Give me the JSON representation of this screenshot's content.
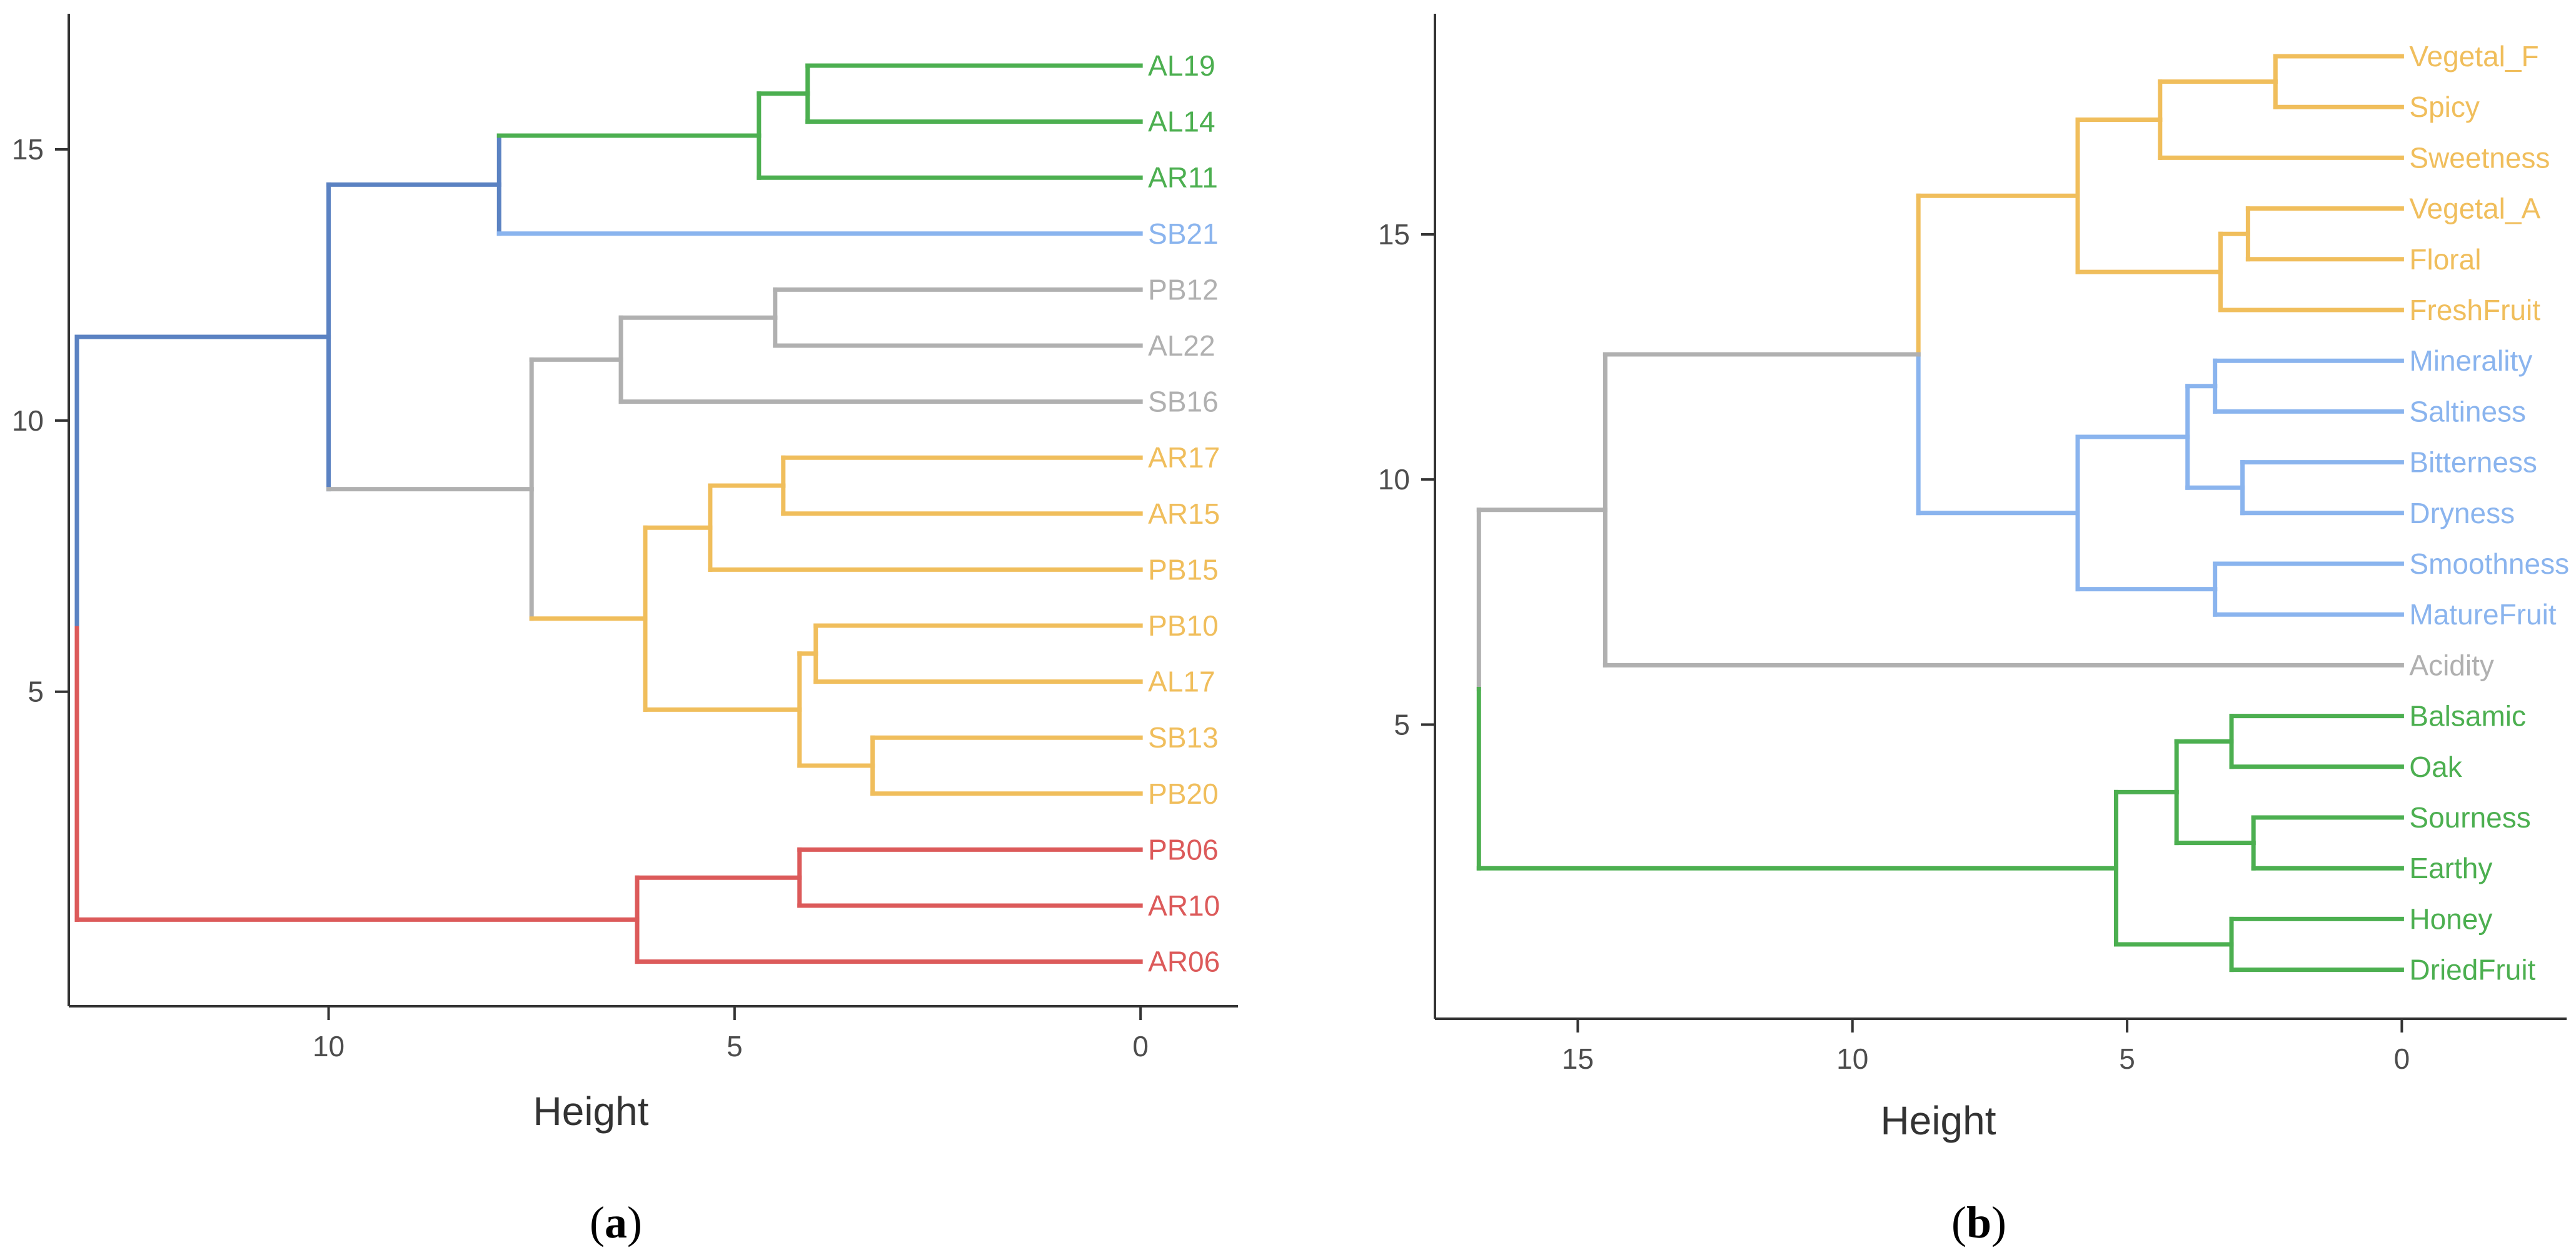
{
  "chart_data": [
    {
      "type": "dendrogram",
      "panel_label": "a",
      "xlabel": "Height",
      "ylabel": "",
      "height_axis_ticks": [
        10,
        5,
        0
      ],
      "vertical_axis_ticks": [
        5,
        10,
        15
      ],
      "height_range": [
        13.2,
        -1.2
      ],
      "vertical_range": [
        -0.8,
        17.5
      ],
      "leaves": [
        {
          "label": "AL19",
          "cluster": "green"
        },
        {
          "label": "AL14",
          "cluster": "green"
        },
        {
          "label": "AR11",
          "cluster": "green"
        },
        {
          "label": "SB21",
          "cluster": "lightblue"
        },
        {
          "label": "PB12",
          "cluster": "gray"
        },
        {
          "label": "AL22",
          "cluster": "gray"
        },
        {
          "label": "SB16",
          "cluster": "gray"
        },
        {
          "label": "AR17",
          "cluster": "orange"
        },
        {
          "label": "AR15",
          "cluster": "orange"
        },
        {
          "label": "PB15",
          "cluster": "orange"
        },
        {
          "label": "PB10",
          "cluster": "orange"
        },
        {
          "label": "AL17",
          "cluster": "orange"
        },
        {
          "label": "SB13",
          "cluster": "orange"
        },
        {
          "label": "PB20",
          "cluster": "orange"
        },
        {
          "label": "PB06",
          "cluster": "red"
        },
        {
          "label": "AR10",
          "cluster": "red"
        },
        {
          "label": "AR06",
          "cluster": "red"
        }
      ],
      "merges": [
        {
          "id": "a_m1",
          "left": "AL19",
          "right": "AL14",
          "height": 4.1,
          "cluster": "green"
        },
        {
          "id": "a_m2",
          "left": "a_m1",
          "right": "AR11",
          "height": 4.7,
          "cluster": "green"
        },
        {
          "id": "a_m3",
          "left": "a_m2",
          "right": "SB21",
          "height": 7.9,
          "cluster": "blue"
        },
        {
          "id": "a_m4",
          "left": "PB12",
          "right": "AL22",
          "height": 4.5,
          "cluster": "gray"
        },
        {
          "id": "a_m5",
          "left": "a_m4",
          "right": "SB16",
          "height": 6.4,
          "cluster": "gray"
        },
        {
          "id": "a_m6",
          "left": "AR17",
          "right": "AR15",
          "height": 4.4,
          "cluster": "orange"
        },
        {
          "id": "a_m7",
          "left": "a_m6",
          "right": "PB15",
          "height": 5.3,
          "cluster": "orange"
        },
        {
          "id": "a_m8",
          "left": "PB10",
          "right": "AL17",
          "height": 4.0,
          "cluster": "orange"
        },
        {
          "id": "a_m9",
          "left": "SB13",
          "right": "PB20",
          "height": 3.3,
          "cluster": "orange"
        },
        {
          "id": "a_m10",
          "left": "a_m8",
          "right": "a_m9",
          "height": 4.2,
          "cluster": "orange"
        },
        {
          "id": "a_m11",
          "left": "a_m7",
          "right": "a_m10",
          "height": 6.1,
          "cluster": "orange"
        },
        {
          "id": "a_m12",
          "left": "a_m5",
          "right": "a_m11",
          "height": 7.5,
          "cluster": "gray"
        },
        {
          "id": "a_m13",
          "left": "a_m3",
          "right": "a_m12",
          "height": 10.0,
          "cluster": "blue"
        },
        {
          "id": "a_m14",
          "left": "PB06",
          "right": "AR10",
          "height": 4.2,
          "cluster": "red"
        },
        {
          "id": "a_m15",
          "left": "a_m14",
          "right": "AR06",
          "height": 6.2,
          "cluster": "red"
        },
        {
          "id": "a_m16",
          "left": "a_m13",
          "right": "a_m15",
          "height": 13.1,
          "cluster": "split"
        }
      ]
    },
    {
      "type": "dendrogram",
      "panel_label": "b",
      "xlabel": "Height",
      "ylabel": "",
      "height_axis_ticks": [
        15,
        10,
        5,
        0
      ],
      "vertical_axis_ticks": [
        5,
        10,
        15
      ],
      "height_range": [
        17.6,
        -3.0
      ],
      "vertical_range": [
        -1.0,
        19.5
      ],
      "leaves": [
        {
          "label": "Vegetal_F",
          "cluster": "orange"
        },
        {
          "label": "Spicy",
          "cluster": "orange"
        },
        {
          "label": "Sweetness",
          "cluster": "orange"
        },
        {
          "label": "Vegetal_A",
          "cluster": "orange"
        },
        {
          "label": "Floral",
          "cluster": "orange"
        },
        {
          "label": "FreshFruit",
          "cluster": "orange"
        },
        {
          "label": "Minerality",
          "cluster": "lightblue"
        },
        {
          "label": "Saltiness",
          "cluster": "lightblue"
        },
        {
          "label": "Bitterness",
          "cluster": "lightblue"
        },
        {
          "label": "Dryness",
          "cluster": "lightblue"
        },
        {
          "label": "Smoothness",
          "cluster": "lightblue"
        },
        {
          "label": "MatureFruit",
          "cluster": "lightblue"
        },
        {
          "label": "Acidity",
          "cluster": "gray"
        },
        {
          "label": "Balsamic",
          "cluster": "green"
        },
        {
          "label": "Oak",
          "cluster": "green"
        },
        {
          "label": "Sourness",
          "cluster": "green"
        },
        {
          "label": "Earthy",
          "cluster": "green"
        },
        {
          "label": "Honey",
          "cluster": "green"
        },
        {
          "label": "DriedFruit",
          "cluster": "green"
        }
      ],
      "merges": [
        {
          "id": "b_m1",
          "left": "Vegetal_F",
          "right": "Spicy",
          "height": 2.3,
          "cluster": "orange"
        },
        {
          "id": "b_m2",
          "left": "b_m1",
          "right": "Sweetness",
          "height": 4.4,
          "cluster": "orange"
        },
        {
          "id": "b_m3",
          "left": "Vegetal_A",
          "right": "Floral",
          "height": 2.8,
          "cluster": "orange"
        },
        {
          "id": "b_m4",
          "left": "b_m3",
          "right": "FreshFruit",
          "height": 3.3,
          "cluster": "orange"
        },
        {
          "id": "b_m5",
          "left": "b_m2",
          "right": "b_m4",
          "height": 5.9,
          "cluster": "orange"
        },
        {
          "id": "b_m6",
          "left": "Minerality",
          "right": "Saltiness",
          "height": 3.4,
          "cluster": "lightblue"
        },
        {
          "id": "b_m7",
          "left": "Bitterness",
          "right": "Dryness",
          "height": 2.9,
          "cluster": "lightblue"
        },
        {
          "id": "b_m8",
          "left": "b_m6",
          "right": "b_m7",
          "height": 3.9,
          "cluster": "lightblue"
        },
        {
          "id": "b_m9",
          "left": "Smoothness",
          "right": "MatureFruit",
          "height": 3.4,
          "cluster": "lightblue"
        },
        {
          "id": "b_m10",
          "left": "b_m8",
          "right": "b_m9",
          "height": 5.9,
          "cluster": "lightblue"
        },
        {
          "id": "b_m11",
          "left": "b_m5",
          "right": "b_m10",
          "height": 8.8,
          "cluster": "split"
        },
        {
          "id": "b_m12",
          "left": "b_m11",
          "right": "Acidity",
          "height": 14.5,
          "cluster": "gray"
        },
        {
          "id": "b_m13",
          "left": "Balsamic",
          "right": "Oak",
          "height": 3.1,
          "cluster": "green"
        },
        {
          "id": "b_m14",
          "left": "Sourness",
          "right": "Earthy",
          "height": 2.7,
          "cluster": "green"
        },
        {
          "id": "b_m15",
          "left": "b_m13",
          "right": "b_m14",
          "height": 4.1,
          "cluster": "green"
        },
        {
          "id": "b_m16",
          "left": "Honey",
          "right": "DriedFruit",
          "height": 3.1,
          "cluster": "green"
        },
        {
          "id": "b_m17",
          "left": "b_m15",
          "right": "b_m16",
          "height": 5.2,
          "cluster": "green"
        },
        {
          "id": "b_m18",
          "left": "b_m12",
          "right": "b_m17",
          "height": 16.8,
          "cluster": "split"
        }
      ]
    }
  ],
  "colors": {
    "green": "#4caf50",
    "lightblue": "#8ab4ee",
    "gray": "#b0b0b0",
    "orange": "#f0be5c",
    "red": "#dc5a5a",
    "blue": "#5b82c2",
    "split": "#5b82c2"
  },
  "captions": {
    "a": "(a)",
    "b": "(b)"
  }
}
